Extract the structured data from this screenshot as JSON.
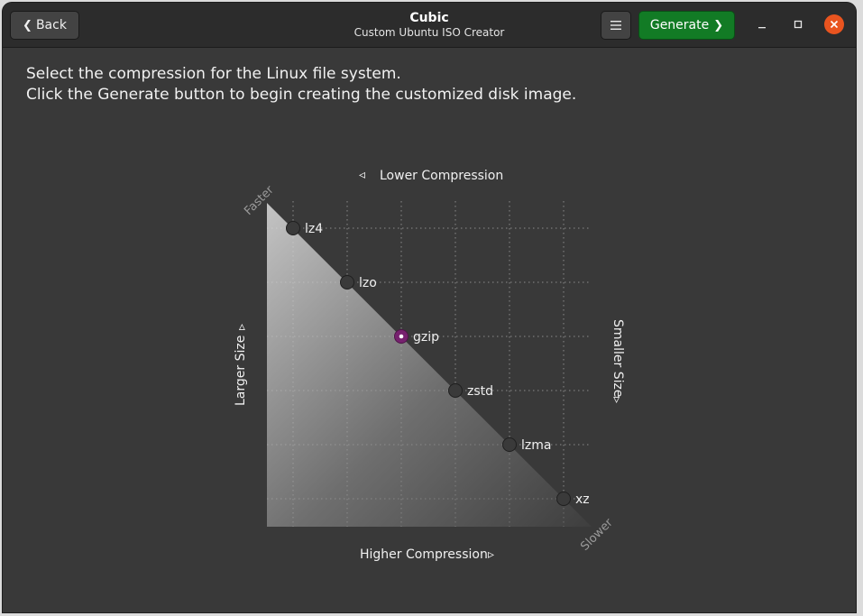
{
  "window": {
    "title": "Cubic",
    "subtitle": "Custom Ubuntu ISO Creator"
  },
  "header": {
    "back_label": "Back",
    "back_icon": "❮",
    "menu_icon": "hamburger-menu",
    "generate_label": "Generate",
    "generate_icon": "❯"
  },
  "instructions": {
    "line1": "Select the compression for the Linux file system.",
    "line2": "Click the Generate button to begin creating the customized disk image."
  },
  "graph": {
    "label_top": "Lower Compression",
    "label_bottom": "Higher Compression",
    "label_left": "Larger Size",
    "label_right": "Smaller Size",
    "corner_top": "Faster",
    "corner_bottom": "Slower",
    "selected": "gzip",
    "accent_color": "#77216f",
    "options": [
      {
        "id": "lz4",
        "label": "lz4"
      },
      {
        "id": "lzo",
        "label": "lzo"
      },
      {
        "id": "gzip",
        "label": "gzip"
      },
      {
        "id": "zstd",
        "label": "zstd"
      },
      {
        "id": "lzma",
        "label": "lzma"
      },
      {
        "id": "xz",
        "label": "xz"
      }
    ]
  }
}
